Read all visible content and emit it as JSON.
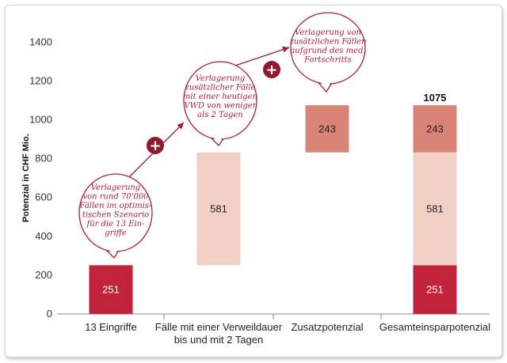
{
  "chart_data": {
    "type": "bar",
    "subtype": "waterfall",
    "ylabel": "Potenzial in CHF Mio.",
    "ylim": [
      0,
      1400
    ],
    "yticks": [
      0,
      200,
      400,
      600,
      800,
      1000,
      1200,
      1400
    ],
    "grid": false,
    "categories": [
      "13 Eingriffe",
      "Fälle mit einer Verweildauer bis und mit 2 Tagen",
      "Zusatzpotenzial",
      "Gesamteinsparpotenzial"
    ],
    "category_labels": [
      [
        "13 Eingriffe"
      ],
      [
        "Fälle mit einer Verweildauer",
        "bis und mit 2 Tagen"
      ],
      [
        "Zusatzpotenzial"
      ],
      [
        "Gesamteinsparpotenzial"
      ]
    ],
    "segments": [
      {
        "category": 0,
        "base": 0,
        "value": 251,
        "label": "251",
        "color": "#c0233a",
        "text_color": "#ffffff"
      },
      {
        "category": 1,
        "base": 251,
        "value": 581,
        "label": "581",
        "color": "#f2d0c6",
        "text_color": "#222222"
      },
      {
        "category": 2,
        "base": 832,
        "value": 243,
        "label": "243",
        "color": "#da8478",
        "text_color": "#222222"
      },
      {
        "category": 3,
        "base": 0,
        "value": 251,
        "label": "251",
        "color": "#c0233a",
        "text_color": "#ffffff"
      },
      {
        "category": 3,
        "base": 251,
        "value": 581,
        "label": "581",
        "color": "#f2d0c6",
        "text_color": "#222222"
      },
      {
        "category": 3,
        "base": 832,
        "value": 243,
        "label": "243",
        "color": "#da8478",
        "text_color": "#222222"
      }
    ],
    "total": {
      "category": 3,
      "value": 1075,
      "label": "1075"
    },
    "annotations": [
      {
        "category": 0,
        "lines": [
          "Verlagerung",
          "von rund 70'000",
          "Fällen im optimis-",
          "tischen Szenario",
          "für die 13 Ein-",
          "griffe"
        ]
      },
      {
        "category": 1,
        "lines": [
          "Verlagerung",
          "zusätzlicher Fälle",
          "mit einer heutigen",
          "VWD von weniger",
          "als 2 Tagen"
        ]
      },
      {
        "category": 2,
        "lines": [
          "Verlagerung von",
          "zusätzlichen Fällen",
          "aufgrund des med.",
          "Fortschritts"
        ]
      }
    ],
    "plus_symbol": "+",
    "colors": {
      "dark_red": "#c0233a",
      "plus_circle": "#8e1a2c",
      "note_text": "#a8203a"
    }
  }
}
